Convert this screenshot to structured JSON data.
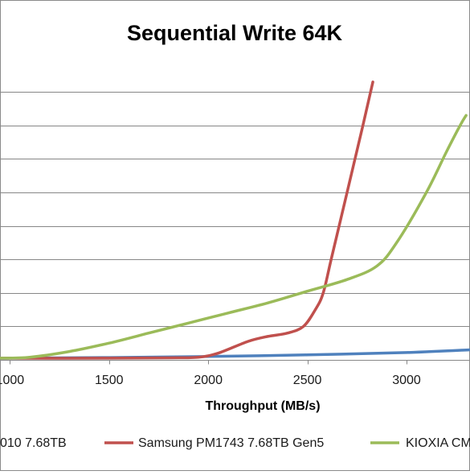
{
  "chart_data": {
    "type": "line",
    "title": "Sequential Write 64K",
    "xlabel": "Throughput  (MB/s)",
    "ylabel": "",
    "xlim": [
      950,
      3320
    ],
    "ylim": [
      0,
      8.8
    ],
    "x_ticks": [
      1000,
      1500,
      2000,
      2500,
      3000
    ],
    "y_gridlines": [
      1,
      2,
      3,
      4,
      5,
      6,
      7,
      8
    ],
    "grid": true,
    "legend_position": "bottom",
    "series": [
      {
        "name": "010 7.68TB",
        "color": "#4f81bd",
        "points": [
          [
            950,
            0.05
          ],
          [
            1000,
            0.05
          ],
          [
            1500,
            0.07
          ],
          [
            2000,
            0.1
          ],
          [
            2500,
            0.15
          ],
          [
            3000,
            0.22
          ],
          [
            3320,
            0.3
          ]
        ]
      },
      {
        "name": "Samsung PM1743 7.68TB Gen5",
        "color": "#c0504d",
        "points": [
          [
            950,
            0.05
          ],
          [
            1500,
            0.05
          ],
          [
            1800,
            0.06
          ],
          [
            1950,
            0.08
          ],
          [
            2050,
            0.2
          ],
          [
            2200,
            0.55
          ],
          [
            2300,
            0.7
          ],
          [
            2400,
            0.8
          ],
          [
            2480,
            1.0
          ],
          [
            2540,
            1.5
          ],
          [
            2580,
            2.0
          ],
          [
            2620,
            3.0
          ],
          [
            2700,
            5.0
          ],
          [
            2780,
            7.0
          ],
          [
            2830,
            8.3
          ]
        ]
      },
      {
        "name": "KIOXIA CM",
        "color": "#9bbb59",
        "points": [
          [
            950,
            0.05
          ],
          [
            1100,
            0.08
          ],
          [
            1300,
            0.25
          ],
          [
            1500,
            0.5
          ],
          [
            1700,
            0.8
          ],
          [
            1900,
            1.1
          ],
          [
            2100,
            1.4
          ],
          [
            2300,
            1.7
          ],
          [
            2500,
            2.05
          ],
          [
            2700,
            2.4
          ],
          [
            2850,
            2.8
          ],
          [
            2950,
            3.5
          ],
          [
            3100,
            5.0
          ],
          [
            3200,
            6.2
          ],
          [
            3270,
            7.0
          ],
          [
            3300,
            7.3
          ]
        ]
      }
    ]
  }
}
